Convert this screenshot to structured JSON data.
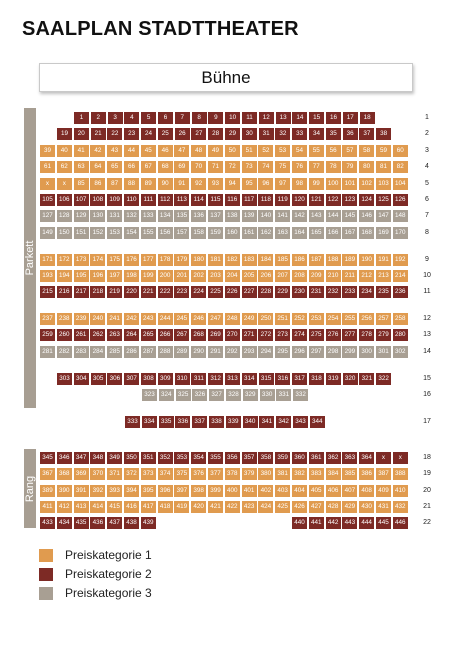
{
  "title": "SAALPLAN STADTTHEATER",
  "stage_label": "Bühne",
  "sections": [
    {
      "label": "Parkett",
      "top": 108,
      "height": 300
    },
    {
      "label": "Rang",
      "top": 449,
      "height": 79
    }
  ],
  "colors": {
    "1": "#e09b4f",
    "2": "#7d2a25",
    "3": "#a89f93"
  },
  "rows": [
    {
      "row": "1",
      "y": 112,
      "x0": 74,
      "segments": [
        {
          "from": 1,
          "to": 18,
          "cat": 2
        }
      ]
    },
    {
      "row": "2",
      "y": 128,
      "x0": 57,
      "segments": [
        {
          "from": 19,
          "to": 38,
          "cat": 2
        }
      ]
    },
    {
      "row": "3",
      "y": 145,
      "x0": 40,
      "segments": [
        {
          "from": 39,
          "to": 60,
          "cat": 1
        }
      ]
    },
    {
      "row": "4",
      "y": 161,
      "x0": 40,
      "segments": [
        {
          "from": 61,
          "to": 82,
          "cat": 1
        }
      ]
    },
    {
      "row": "5",
      "y": 178,
      "x0": 40,
      "segments": [
        {
          "labels": [
            "x",
            "x"
          ],
          "cat": 1
        },
        {
          "from": 85,
          "to": 104,
          "cat": 1
        }
      ]
    },
    {
      "row": "6",
      "y": 194,
      "x0": 40,
      "segments": [
        {
          "from": 105,
          "to": 126,
          "cat": 2
        }
      ]
    },
    {
      "row": "7",
      "y": 210,
      "x0": 40,
      "segments": [
        {
          "from": 127,
          "to": 148,
          "cat": 3
        }
      ]
    },
    {
      "row": "8",
      "y": 227,
      "x0": 40,
      "segments": [
        {
          "from": 149,
          "to": 170,
          "cat": 3
        }
      ]
    },
    {
      "row": "9",
      "y": 254,
      "x0": 40,
      "segments": [
        {
          "from": 171,
          "to": 192,
          "cat": 1
        }
      ]
    },
    {
      "row": "10",
      "y": 270,
      "x0": 40,
      "segments": [
        {
          "from": 193,
          "to": 214,
          "cat": 1
        }
      ]
    },
    {
      "row": "11",
      "y": 286,
      "x0": 40,
      "segments": [
        {
          "from": 215,
          "to": 236,
          "cat": 2
        }
      ]
    },
    {
      "row": "12",
      "y": 313,
      "x0": 40,
      "segments": [
        {
          "from": 237,
          "to": 258,
          "cat": 1
        }
      ]
    },
    {
      "row": "13",
      "y": 329,
      "x0": 40,
      "segments": [
        {
          "from": 259,
          "to": 280,
          "cat": 2
        }
      ]
    },
    {
      "row": "14",
      "y": 346,
      "x0": 40,
      "segments": [
        {
          "from": 281,
          "to": 302,
          "cat": 3
        }
      ]
    },
    {
      "row": "15",
      "y": 373,
      "x0": 57,
      "segments": [
        {
          "from": 303,
          "to": 322,
          "cat": 2
        }
      ]
    },
    {
      "row": "16",
      "y": 389,
      "x0": 142,
      "segments": [
        {
          "from": 323,
          "to": 332,
          "cat": 3
        }
      ]
    },
    {
      "row": "17",
      "y": 416,
      "x0": 125,
      "segments": [
        {
          "from": 333,
          "to": 344,
          "cat": 2
        }
      ]
    },
    {
      "row": "18",
      "y": 452,
      "x0": 40,
      "segments": [
        {
          "from": 345,
          "to": 364,
          "cat": 2
        },
        {
          "labels": [
            "x",
            "x"
          ],
          "cat": 2
        }
      ]
    },
    {
      "row": "19",
      "y": 468,
      "x0": 40,
      "segments": [
        {
          "from": 367,
          "to": 388,
          "cat": 1
        }
      ]
    },
    {
      "row": "20",
      "y": 485,
      "x0": 40,
      "segments": [
        {
          "from": 389,
          "to": 410,
          "cat": 1
        }
      ]
    },
    {
      "row": "21",
      "y": 501,
      "x0": 40,
      "segments": [
        {
          "from": 411,
          "to": 432,
          "cat": 1
        }
      ]
    },
    {
      "row": "22",
      "y": 517,
      "x0": 40,
      "segments": [
        {
          "from": 433,
          "to": 439,
          "cat": 2
        },
        {
          "gap": 8
        },
        {
          "from": 440,
          "to": 446,
          "cat": 2
        }
      ]
    }
  ],
  "legend": [
    {
      "label": "Preiskategorie 1",
      "cat": 1
    },
    {
      "label": "Preiskategorie 2",
      "cat": 2
    },
    {
      "label": "Preiskategorie 3",
      "cat": 3
    }
  ]
}
